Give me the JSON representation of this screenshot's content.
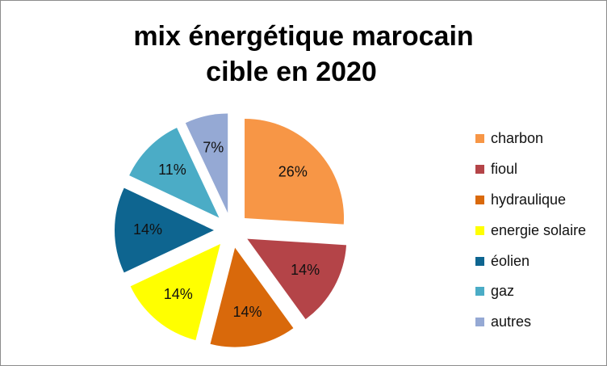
{
  "chart_data": {
    "type": "pie",
    "title_lines": [
      "mix énergétique marocain",
      "cible en 2020"
    ],
    "series": [
      {
        "name": "charbon",
        "value": 26,
        "label": "26%",
        "color": "#F79646"
      },
      {
        "name": "fioul",
        "value": 14,
        "label": "14%",
        "color": "#B44448"
      },
      {
        "name": "hydraulique",
        "value": 14,
        "label": "14%",
        "color": "#D9690B"
      },
      {
        "name": "energie solaire",
        "value": 14,
        "label": "14%",
        "color": "#FFFF00"
      },
      {
        "name": "éolien",
        "value": 14,
        "label": "14%",
        "color": "#0E6590"
      },
      {
        "name": "gaz",
        "value": 11,
        "label": "11%",
        "color": "#4BACC6"
      },
      {
        "name": "autres",
        "value": 7,
        "label": "7%",
        "color": "#95A9D4"
      }
    ],
    "legend_position": "right",
    "exploded": true
  }
}
